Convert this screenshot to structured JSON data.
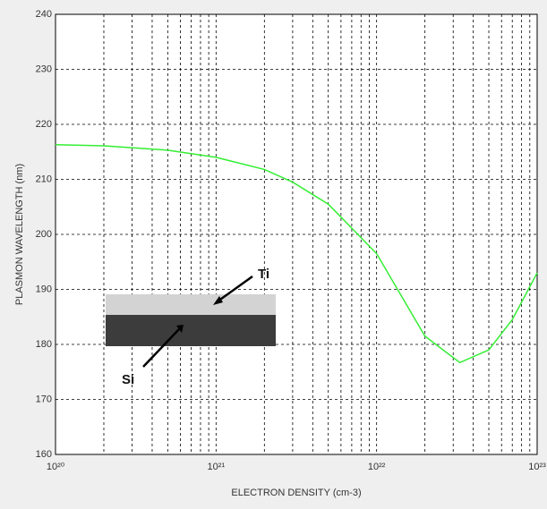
{
  "chart_data": {
    "type": "line",
    "x_label": "ELECTRON DENSITY (cm-3)",
    "y_label": "PLASMON WAVELENGTH (nm)",
    "x_scale": "log",
    "x": [
      1e+20,
      2e+20,
      5e+20,
      1e+21,
      2e+21,
      3e+21,
      5e+21,
      1e+22,
      2e+22,
      3.3e+22,
      5e+22,
      7e+22,
      1e+23
    ],
    "series": [
      {
        "color": "#33ee33",
        "values": [
          216.3,
          216.1,
          215.3,
          214,
          211.8,
          209.5,
          205.5,
          196.5,
          181.5,
          176.7,
          179,
          184.5,
          193
        ]
      }
    ],
    "xlim": [
      1e+20,
      1e+23
    ],
    "xticks": [
      {
        "value": 1e+20,
        "label": "10²⁰"
      },
      {
        "value": 1e+21,
        "label": "10²¹"
      },
      {
        "value": 1e+22,
        "label": "10²²"
      },
      {
        "value": 1e+23,
        "label": "10²³"
      }
    ],
    "ylim": [
      160,
      240
    ],
    "yticks": [
      160,
      170,
      180,
      190,
      200,
      210,
      220,
      230,
      240
    ],
    "grid": true,
    "minor_grid": true,
    "inset": {
      "top_layer": "Ti",
      "bottom_layer": "Si"
    }
  }
}
